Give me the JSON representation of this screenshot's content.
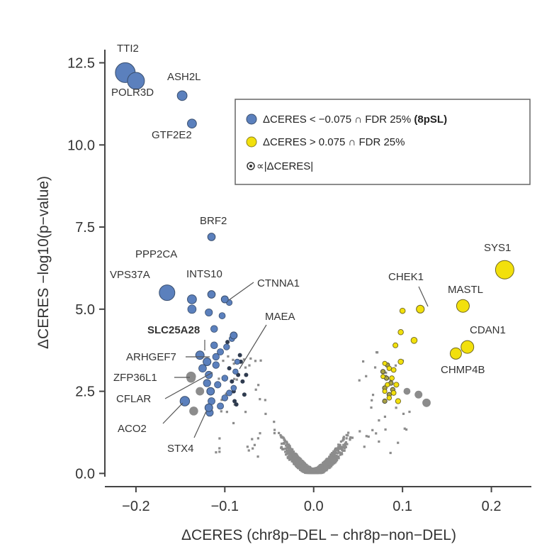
{
  "chart_data": {
    "type": "scatter",
    "title": "",
    "xlabel": "ΔCERES (chr8p−DEL − chr8p−non−DEL)",
    "ylabel": "ΔCERES −log10(p−value)",
    "xlim": [
      -0.235,
      0.245
    ],
    "ylim": [
      -0.1,
      12.9
    ],
    "xticks": [
      -0.2,
      -0.1,
      0.0,
      0.1,
      0.2
    ],
    "xtick_labels": [
      "−0.2",
      "−0.1",
      "0.0",
      "0.1",
      "0.2"
    ],
    "yticks": [
      0.0,
      2.5,
      5.0,
      7.5,
      10.0,
      12.5
    ],
    "ytick_labels": [
      "0.0",
      "2.5",
      "5.0",
      "7.5",
      "10.0",
      "12.5"
    ],
    "grid": false,
    "legend": {
      "placement": "top-right",
      "entries": [
        {
          "marker": "blue",
          "text": "ΔCERES < −0.075 ∩ FDR 25% ",
          "bold_suffix": "(8pSL)"
        },
        {
          "marker": "yellow",
          "text": "ΔCERES > 0.075 ∩ FDR 25%",
          "bold_suffix": ""
        },
        {
          "marker": "size",
          "text": "∝|ΔCERES|",
          "bold_suffix": ""
        }
      ]
    },
    "colors": {
      "blue": "#5b80bd",
      "yellow": "#f2e00c",
      "gray": "#8c8c8c",
      "dark": "#2f3b4f",
      "olive": "#a7a045"
    },
    "labeled_points": [
      {
        "gene": "TTI2",
        "x": -0.212,
        "y": 12.2,
        "group": "blue",
        "bold": false
      },
      {
        "gene": "POLR3D",
        "x": -0.2,
        "y": 11.95,
        "group": "blue",
        "bold": false
      },
      {
        "gene": "ASH2L",
        "x": -0.148,
        "y": 11.5,
        "group": "blue",
        "bold": false
      },
      {
        "gene": "GTF2E2",
        "x": -0.137,
        "y": 10.65,
        "group": "blue",
        "bold": false
      },
      {
        "gene": "BRF2",
        "x": -0.115,
        "y": 7.2,
        "group": "blue",
        "bold": false
      },
      {
        "gene": "PPP2CA",
        "x": -0.137,
        "y": 5.3,
        "group": "blue",
        "bold": false
      },
      {
        "gene": "VPS37A",
        "x": -0.165,
        "y": 5.5,
        "group": "blue",
        "bold": false
      },
      {
        "gene": "INTS10",
        "x": -0.115,
        "y": 5.45,
        "group": "blue",
        "bold": false
      },
      {
        "gene": "CTNNA1",
        "x": -0.1,
        "y": 5.3,
        "group": "blue",
        "bold": false
      },
      {
        "gene": "MAEA",
        "x": -0.09,
        "y": 4.2,
        "group": "blue",
        "bold": false
      },
      {
        "gene": "SLC25A28",
        "x": -0.128,
        "y": 3.6,
        "group": "blue",
        "bold": true
      },
      {
        "gene": "ARHGEF7",
        "x": -0.12,
        "y": 3.4,
        "group": "blue",
        "bold": false
      },
      {
        "gene": "ZFP36L1",
        "x": -0.138,
        "y": 2.95,
        "group": "gray",
        "bold": false
      },
      {
        "gene": "CFLAR",
        "x": -0.116,
        "y": 2.5,
        "group": "blue",
        "bold": false
      },
      {
        "gene": "ACO2",
        "x": -0.145,
        "y": 2.2,
        "group": "blue",
        "bold": false
      },
      {
        "gene": "STX4",
        "x": -0.118,
        "y": 2.0,
        "group": "blue",
        "bold": false
      },
      {
        "gene": "SYS1",
        "x": 0.215,
        "y": 6.2,
        "group": "yellow",
        "bold": false
      },
      {
        "gene": "CHEK1",
        "x": 0.12,
        "y": 5.0,
        "group": "yellow",
        "bold": false
      },
      {
        "gene": "MASTL",
        "x": 0.168,
        "y": 5.1,
        "group": "yellow",
        "bold": false
      },
      {
        "gene": "CDAN1",
        "x": 0.173,
        "y": 3.85,
        "group": "yellow",
        "bold": false
      },
      {
        "gene": "CHMP4B",
        "x": 0.16,
        "y": 3.65,
        "group": "yellow",
        "bold": false
      }
    ],
    "unlabeled_blue": [
      [
        -0.137,
        5.0
      ],
      [
        -0.118,
        4.9
      ],
      [
        -0.103,
        4.8
      ],
      [
        -0.095,
        5.2
      ],
      [
        -0.118,
        3.0
      ],
      [
        -0.11,
        3.3
      ],
      [
        -0.105,
        3.7
      ],
      [
        -0.112,
        3.9
      ],
      [
        -0.108,
        2.7
      ],
      [
        -0.1,
        2.9
      ],
      [
        -0.115,
        2.2
      ],
      [
        -0.105,
        2.05
      ],
      [
        -0.117,
        1.85
      ],
      [
        -0.095,
        2.45
      ],
      [
        -0.12,
        2.75
      ],
      [
        -0.125,
        3.2
      ],
      [
        -0.11,
        3.55
      ],
      [
        -0.1,
        2.3
      ],
      [
        -0.09,
        2.6
      ],
      [
        -0.088,
        3.1
      ],
      [
        -0.086,
        3.4
      ],
      [
        -0.098,
        3.85
      ],
      [
        -0.092,
        4.1
      ],
      [
        -0.112,
        4.4
      ]
    ],
    "unlabeled_yellow": [
      [
        0.1,
        4.95
      ],
      [
        0.113,
        4.05
      ],
      [
        0.098,
        4.3
      ],
      [
        0.092,
        3.9
      ],
      [
        0.098,
        3.4
      ],
      [
        0.09,
        3.15
      ],
      [
        0.08,
        2.5
      ],
      [
        0.088,
        2.9
      ],
      [
        0.08,
        3.35
      ],
      [
        0.093,
        2.7
      ],
      [
        0.085,
        2.3
      ],
      [
        0.095,
        2.2
      ],
      [
        0.078,
        2.95
      ],
      [
        0.085,
        3.2
      ],
      [
        0.09,
        2.45
      ],
      [
        0.083,
        2.7
      ]
    ],
    "olive_points": [
      [
        0.08,
        2.6
      ],
      [
        0.082,
        2.9
      ],
      [
        0.078,
        3.1
      ],
      [
        0.085,
        2.4
      ],
      [
        0.087,
        2.75
      ],
      [
        0.083,
        3.3
      ],
      [
        0.08,
        2.2
      ],
      [
        0.089,
        2.55
      ]
    ],
    "dark_points": [
      [
        -0.085,
        3.0
      ],
      [
        -0.09,
        2.5
      ],
      [
        -0.095,
        3.2
      ],
      [
        -0.08,
        2.8
      ],
      [
        -0.087,
        2.1
      ],
      [
        -0.082,
        3.4
      ],
      [
        -0.092,
        2.8
      ],
      [
        -0.078,
        2.4
      ],
      [
        -0.097,
        4.0
      ],
      [
        -0.089,
        2.2
      ],
      [
        -0.083,
        3.6
      ],
      [
        -0.076,
        3.0
      ]
    ],
    "big_gray_points": [
      [
        -0.138,
        2.9
      ],
      [
        -0.135,
        1.9
      ],
      [
        -0.128,
        2.5
      ],
      [
        0.118,
        2.4
      ],
      [
        0.127,
        2.15
      ],
      [
        0.105,
        2.5
      ]
    ],
    "background_cloud": {
      "description": "dense gray V-shaped cloud of non-significant genes",
      "count": 1500
    }
  }
}
